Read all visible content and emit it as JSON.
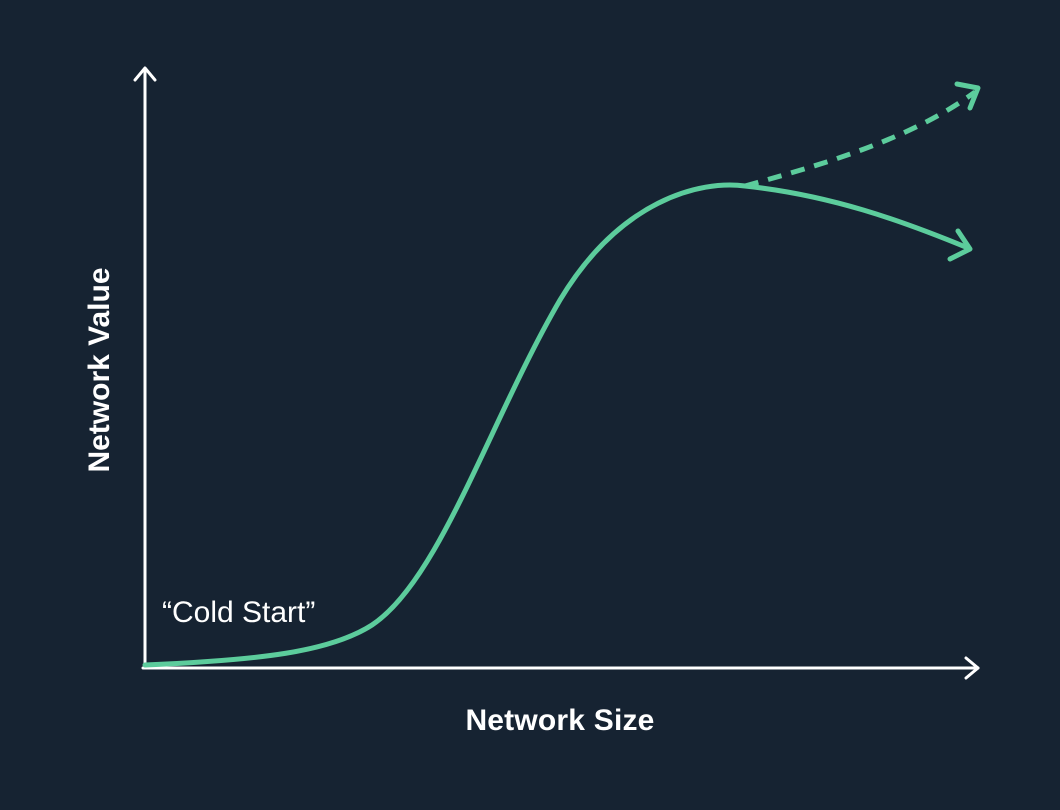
{
  "diagram": {
    "x_axis_label": "Network Size",
    "y_axis_label": "Network Value",
    "annotation": "“Cold Start”",
    "colors": {
      "background": "#162332",
      "axes": "#ffffff",
      "curve": "#5ccc9c",
      "text": "#ffffff"
    },
    "curves": [
      {
        "name": "s-curve",
        "style": "solid",
        "direction": "declining"
      },
      {
        "name": "projection",
        "style": "dashed",
        "direction": "rising"
      }
    ]
  }
}
